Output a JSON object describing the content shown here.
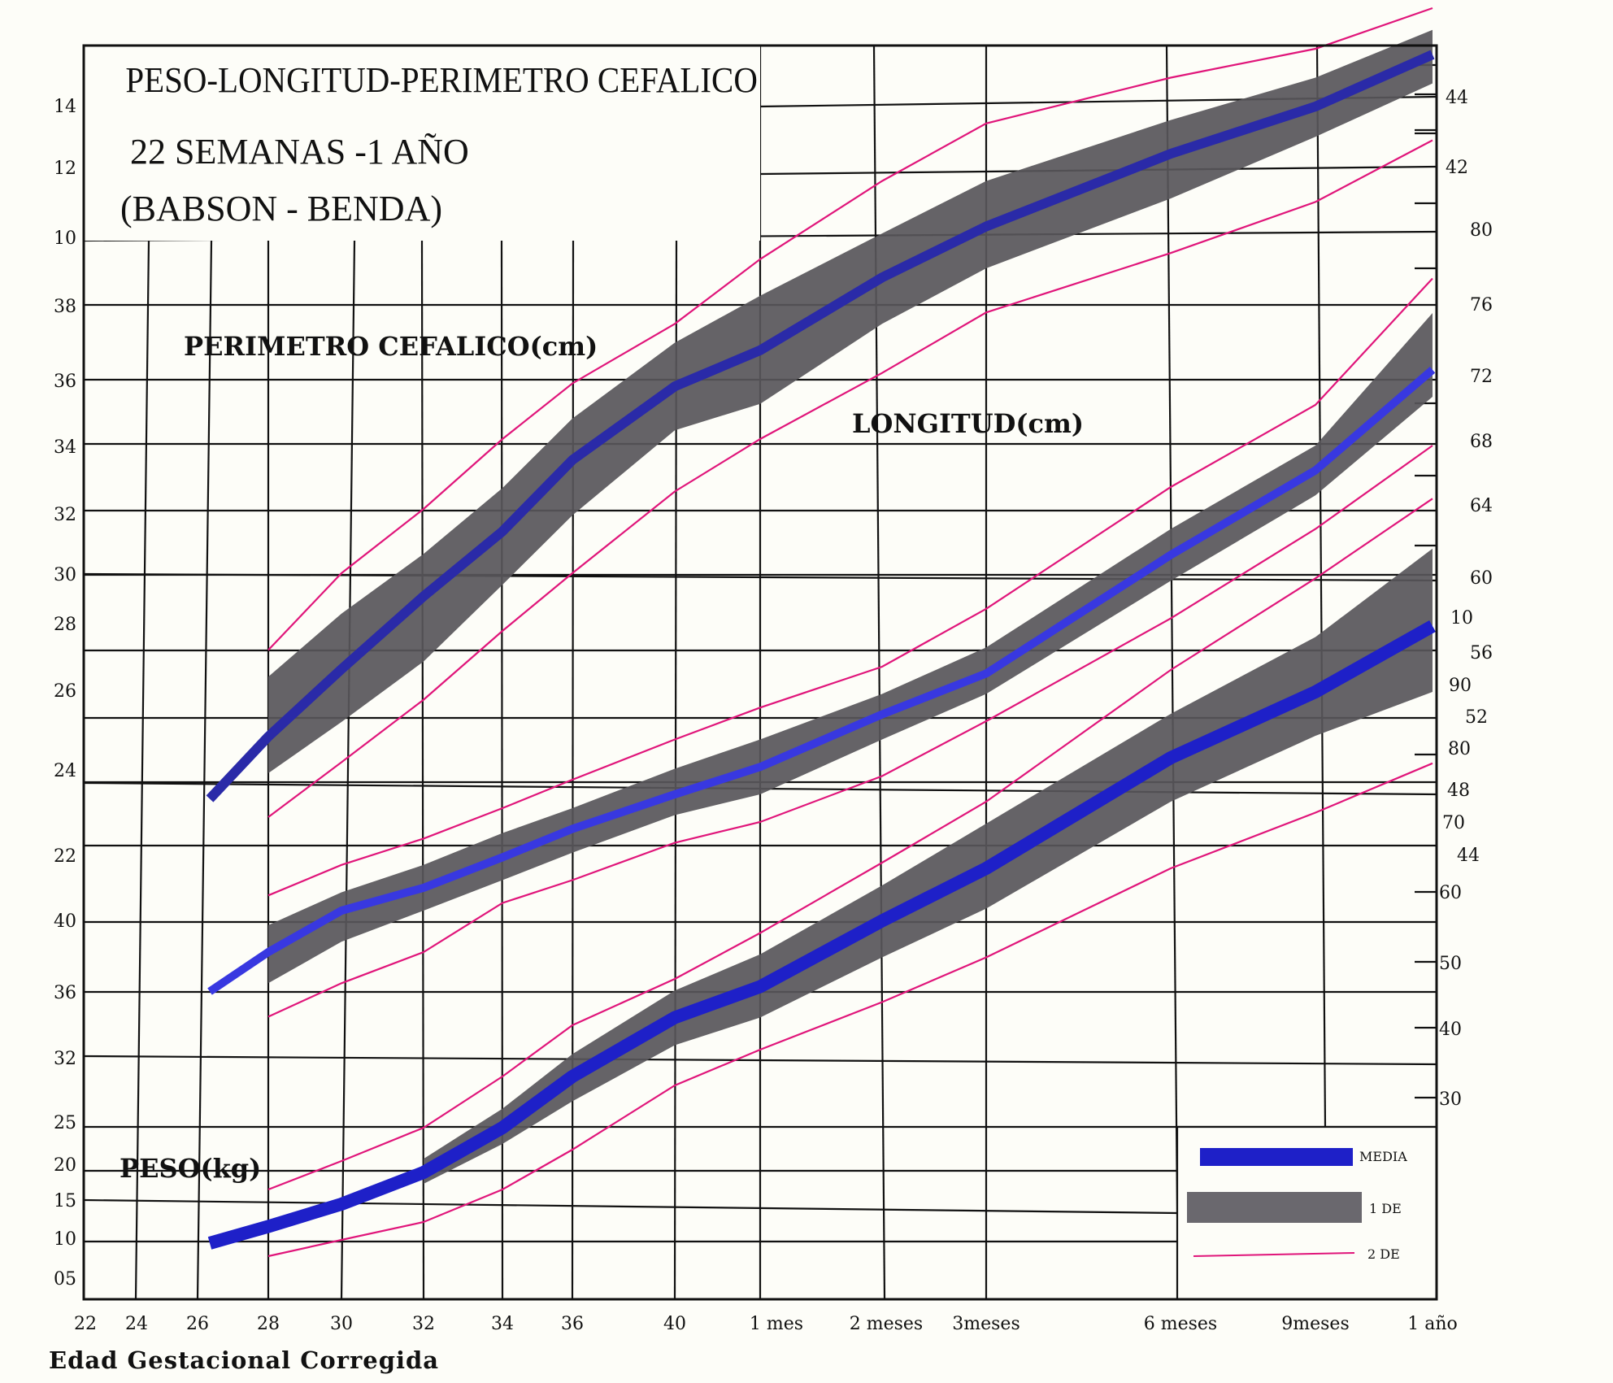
{
  "chart_data": {
    "type": "line",
    "title_lines": [
      "PESO-LONGITUD-PERIMETRO CEFALICO",
      "22 SEMANAS -1 AÑO",
      "(BABSON - BENDA)"
    ],
    "x_tick_labels": [
      "22",
      "24",
      "26",
      "28",
      "30",
      "32",
      "34",
      "36",
      "40",
      "1 mes",
      "2 meses",
      "3meses",
      "6 meses",
      "9meses",
      "1 año"
    ],
    "xlabel": "Edad Gestacional Corregida",
    "left_axis_labels": {
      "head": [
        "14",
        "12",
        "10"
      ],
      "length": [
        "38",
        "36",
        "34",
        "32",
        "30",
        "28",
        "26",
        "24",
        "22",
        "40",
        "36",
        "32"
      ],
      "weight": [
        "25",
        "20",
        "15",
        "10",
        "05"
      ]
    },
    "right_axis_labels": {
      "head": [
        "44",
        "42"
      ],
      "length": [
        "80",
        "76",
        "72",
        "68",
        "64",
        "60",
        "56",
        "52",
        "48",
        "44"
      ],
      "weight": [
        "10",
        "90",
        "80",
        "70",
        "60",
        "50",
        "40",
        "30"
      ]
    },
    "series": [
      {
        "name": "PERIMETRO CEFALICO(cm)",
        "x": [
          "26",
          "28",
          "30",
          "32",
          "34",
          "36",
          "40",
          "1 mes",
          "2 meses",
          "3meses",
          "6 meses",
          "9meses",
          "1 año"
        ],
        "media": [
          23.5,
          25.2,
          27.0,
          29.2,
          31.3,
          33.4,
          35.8,
          36.8,
          38.9,
          40.5,
          42.6,
          44.0,
          45.8
        ],
        "band_upper": [
          null,
          26.8,
          28.6,
          30.6,
          32.6,
          34.7,
          37.0,
          38.3,
          40.3,
          41.8,
          43.6,
          45.0,
          46.7
        ],
        "band_lower": [
          null,
          24.2,
          25.6,
          27.2,
          29.6,
          31.8,
          34.3,
          35.2,
          37.5,
          39.2,
          41.3,
          43.1,
          44.8
        ],
        "sd2_upper": [
          null,
          27.5,
          30.0,
          32.0,
          34.0,
          35.9,
          37.5,
          39.5,
          41.8,
          43.5,
          45.0,
          46.0,
          47.5
        ],
        "sd2_lower": [
          null,
          23.0,
          24.5,
          26.2,
          28.0,
          30.0,
          32.5,
          34.0,
          36.2,
          37.8,
          39.7,
          41.2,
          43.0
        ]
      },
      {
        "name": "LONGITUD(cm)",
        "x": [
          "26",
          "28",
          "30",
          "32",
          "34",
          "36",
          "40",
          "1 mes",
          "2 meses",
          "3meses",
          "6 meses",
          "9meses",
          "1 año"
        ],
        "media": [
          36.1,
          38.0,
          40.0,
          41.5,
          43.5,
          45.5,
          48.0,
          49.5,
          52.5,
          55.5,
          62.0,
          67.0,
          73.0
        ],
        "band_upper": [
          null,
          39.3,
          41.2,
          43.0,
          45.2,
          47.0,
          49.4,
          51.0,
          54.0,
          57.0,
          63.5,
          68.5,
          76.0
        ],
        "band_lower": [
          null,
          36.5,
          38.5,
          40.0,
          42.0,
          43.8,
          46.5,
          48.0,
          51.0,
          54.0,
          60.5,
          65.5,
          71.5
        ],
        "sd2_upper": [
          null,
          41.0,
          43.0,
          44.8,
          47.0,
          48.8,
          51.0,
          53.0,
          56.0,
          59.0,
          66.0,
          71.0,
          78.0
        ],
        "sd2_lower": [
          null,
          34.5,
          36.5,
          38.0,
          40.5,
          42.0,
          44.5,
          46.0,
          49.0,
          52.0,
          58.5,
          63.5,
          68.5
        ]
      },
      {
        "name": "PESO(kg)",
        "x": [
          "26",
          "28",
          "30",
          "32",
          "34",
          "36",
          "40",
          "1 mes",
          "2 meses",
          "3meses",
          "6 meses",
          "9meses",
          "1 año"
        ],
        "media": [
          0.95,
          1.15,
          1.4,
          1.7,
          2.1,
          2.6,
          3.3,
          3.7,
          4.7,
          5.6,
          7.6,
          8.8,
          10.0
        ],
        "band_upper": [
          null,
          null,
          null,
          1.82,
          2.28,
          2.85,
          3.65,
          4.15,
          5.3,
          6.4,
          8.4,
          9.8,
          11.3
        ],
        "band_lower": [
          null,
          null,
          null,
          1.6,
          1.95,
          2.35,
          2.95,
          3.3,
          4.1,
          4.9,
          6.8,
          8.0,
          8.8
        ],
        "sd2_upper": [
          null,
          1.55,
          1.8,
          2.1,
          2.6,
          3.2,
          3.8,
          4.5,
          5.7,
          6.8,
          9.2,
          10.8,
          12.2
        ],
        "sd2_lower": [
          null,
          0.75,
          1.0,
          1.2,
          1.55,
          1.9,
          2.5,
          2.9,
          3.5,
          4.1,
          5.6,
          6.6,
          7.5
        ]
      }
    ],
    "series_labels": [
      "PERIMETRO CEFALICO(cm)",
      "LONGITUD(cm)",
      "PESO(kg)"
    ],
    "legend": {
      "placement": "bottom-right",
      "items": [
        "MEDIA",
        "1 DE",
        "2 DE"
      ]
    },
    "colors": {
      "media_dark": "#2a2aa8",
      "media_bright": "#3838e0",
      "band": "#58565a",
      "sd2": "#e0157a",
      "grid": "#111111"
    },
    "grid": true
  }
}
